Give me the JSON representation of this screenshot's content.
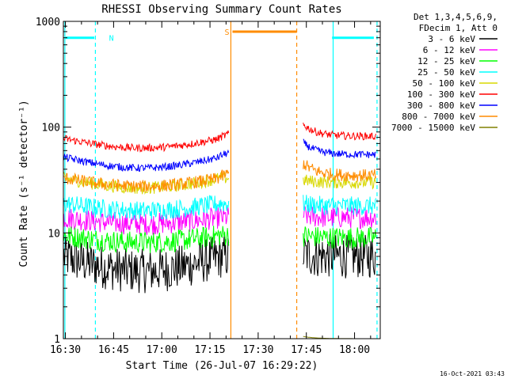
{
  "chart_data": {
    "type": "line",
    "title": "RHESSI Observing Summary Count Rates",
    "xlabel": "Start Time (26-Jul-07 16:29:22)",
    "ylabel": "Count Rate (s⁻¹ detector⁻¹)",
    "y_scale": "log",
    "xlim": [
      "16:29:22",
      "18:08:00"
    ],
    "ylim": [
      1,
      1000
    ],
    "x_ticks": [
      "16:30",
      "16:45",
      "17:00",
      "17:15",
      "17:30",
      "17:45",
      "18:00"
    ],
    "y_ticks": [
      "1",
      "10",
      "100",
      "1000"
    ],
    "grid": false,
    "legend_position": "top-right",
    "legend_header": [
      "Det 1,3,4,5,6,9,",
      "FDecim 1, Att 0"
    ],
    "timestamp": "16-Oct-2021 03:43",
    "colors": {
      "3 - 6 keV": "#000000",
      "6 - 12 keV": "#ff00ff",
      "12 - 25 keV": "#00ff00",
      "25 - 50 keV": "#00ffff",
      "50 - 100 keV": "#d8d800",
      "100 - 300 keV": "#ff0000",
      "300 - 800 keV": "#0000ff",
      "800 - 7000 keV": "#ff8c00",
      "7000 - 15000 keV": "#808000",
      "orbit_marker": "#00ffff"
    },
    "flags": [
      {
        "label": "N",
        "color": "#00ffff",
        "start": "16:30:00",
        "end": "16:39:00",
        "level": 700
      },
      {
        "label": "S",
        "color": "#ff8c00",
        "start": "17:22:00",
        "end": "17:42:00",
        "level": 800
      },
      {
        "label": "",
        "color": "#00ffff",
        "start": "17:53:00",
        "end": "18:06:00",
        "level": 700
      }
    ],
    "markers": [
      {
        "time": "16:29:50",
        "color": "#00ffff",
        "style": "solid"
      },
      {
        "time": "16:39:20",
        "color": "#00ffff",
        "style": "dashed"
      },
      {
        "time": "17:21:30",
        "color": "#ff8c00",
        "style": "solid"
      },
      {
        "time": "17:42:00",
        "color": "#ff8c00",
        "style": "dashed"
      },
      {
        "time": "17:53:20",
        "color": "#00ffff",
        "style": "solid"
      },
      {
        "time": "18:07:00",
        "color": "#00ffff",
        "style": "dashed"
      }
    ],
    "segments": [
      {
        "start": "16:29:30",
        "end": "17:20:50"
      },
      {
        "start": "17:44:00",
        "end": "18:06:40"
      }
    ],
    "series": [
      {
        "name": "3 - 6 keV",
        "start_level": 6,
        "end_level": 6,
        "mid_level": 4.2,
        "noise": 0.07,
        "rise_at_end": false
      },
      {
        "name": "6 - 12 keV",
        "start_level": 14,
        "end_level": 14,
        "mid_level": 12,
        "noise": 0.035,
        "rise_at_end": false
      },
      {
        "name": "12 - 25 keV",
        "start_level": 9.5,
        "end_level": 9,
        "mid_level": 8,
        "noise": 0.035,
        "rise_at_end": false
      },
      {
        "name": "25 - 50 keV",
        "start_level": 19,
        "end_level": 18,
        "mid_level": 16,
        "noise": 0.03,
        "rise_at_end": false
      },
      {
        "name": "50 - 100 keV",
        "start_level": 33,
        "end_level": 30,
        "mid_level": 26,
        "noise": 0.02,
        "rise_at_end": false
      },
      {
        "name": "100 - 300 keV",
        "start_level": 78,
        "end_level": 82,
        "mid_level": 62,
        "noise": 0.012,
        "rise_at_end": true
      },
      {
        "name": "300 - 800 keV",
        "start_level": 52,
        "end_level": 55,
        "mid_level": 40,
        "noise": 0.012,
        "rise_at_end": true
      },
      {
        "name": "800 - 7000 keV",
        "start_level": 33,
        "end_level": 35,
        "mid_level": 27,
        "noise": 0.02,
        "rise_at_end": true
      },
      {
        "name": "7000 - 15000 keV",
        "start_level": 1.0,
        "end_level": 1.0,
        "mid_level": 1.0,
        "noise": 0.0,
        "rise_at_end": false
      }
    ]
  }
}
